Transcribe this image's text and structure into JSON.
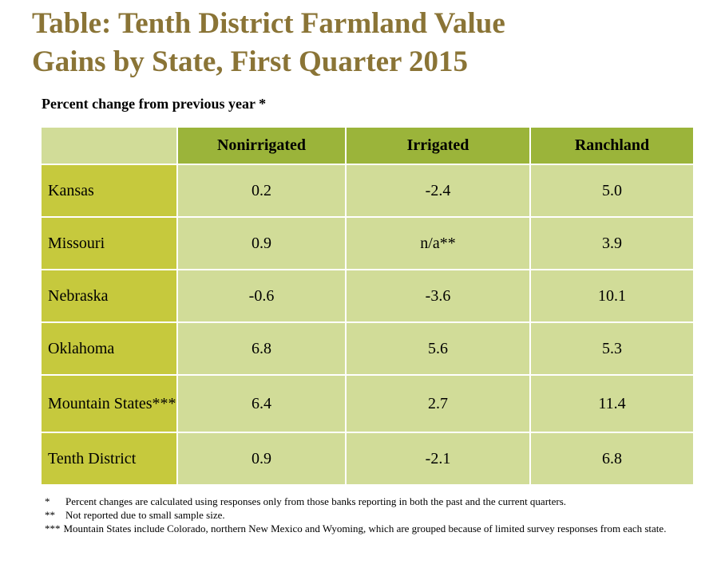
{
  "title_line1": "Table: Tenth District Farmland Value",
  "title_line2": "Gains by State, First Quarter 2015",
  "subtitle": "Percent change from previous year *",
  "colors": {
    "title": "#8a7436",
    "header_fill": "#9bb43a",
    "row_label_fill": "#c6c93d",
    "cell_fill": "#d1dc98"
  },
  "chart_data": {
    "type": "table",
    "title": "Table: Tenth District Farmland Value Gains by State, First Quarter 2015",
    "subtitle": "Percent change from previous year *",
    "columns": [
      "Nonirrigated",
      "Irrigated",
      "Ranchland"
    ],
    "rows": [
      {
        "label": "Kansas",
        "values": [
          "0.2",
          "-2.4",
          "5.0"
        ]
      },
      {
        "label": "Missouri",
        "values": [
          "0.9",
          "n/a**",
          "3.9"
        ]
      },
      {
        "label": "Nebraska",
        "values": [
          "-0.6",
          "-3.6",
          "10.1"
        ]
      },
      {
        "label": "Oklahoma",
        "values": [
          "6.8",
          "5.6",
          "5.3"
        ]
      },
      {
        "label": "Mountain States***",
        "values": [
          "6.4",
          "2.7",
          "11.4"
        ]
      },
      {
        "label": "Tenth District",
        "values": [
          "0.9",
          "-2.1",
          "6.8"
        ]
      }
    ]
  },
  "footnotes": [
    {
      "mark": "*",
      "text": "Percent changes are calculated using responses only from those banks reporting in both the past and the current quarters."
    },
    {
      "mark": "**",
      "text": "Not reported due to small sample size."
    },
    {
      "mark": "***",
      "text": "Mountain States include Colorado, northern New Mexico and Wyoming, which are grouped because of limited survey responses from each state."
    }
  ]
}
